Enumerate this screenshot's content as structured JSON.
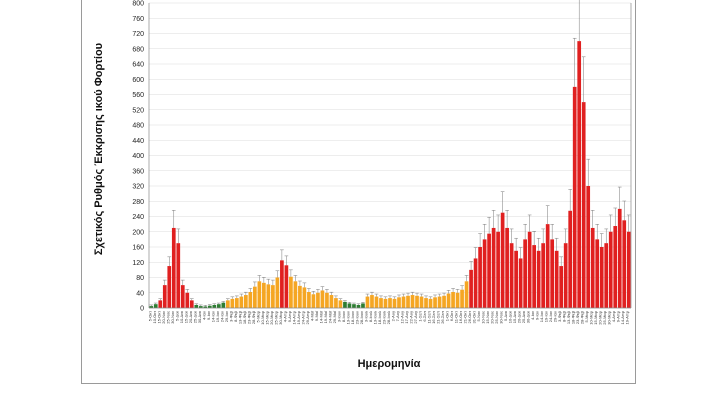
{
  "chart_data": {
    "type": "bar",
    "title": "",
    "xlabel": "Ημερομηνία",
    "ylabel": "Σχετικός Ρυθμός Έκκρισης ικού Φορτίου",
    "ylim": [
      0,
      800
    ],
    "yticks": [
      0,
      40,
      80,
      120,
      160,
      200,
      240,
      280,
      320,
      360,
      400,
      440,
      480,
      520,
      560,
      600,
      640,
      680,
      720,
      760,
      800
    ],
    "grid": true,
    "colors": {
      "low": "#2e7d32",
      "medium": "#f5a623",
      "high": "#e02020",
      "error_bar": "#7a7a7a",
      "error_fill": "#bdbdbd"
    },
    "x_tick_labels": [
      "5-Οκτ",
      "10-Οκτ",
      "15-Οκτ",
      "20-Νοε",
      "25-Νοε",
      "30-Νοε",
      "5-Δεκ",
      "10-Δεκ",
      "15-Δεκ",
      "20-Δεκ",
      "25-Δεκ",
      "30-Δεκ",
      "4-Ιαν",
      "9-Ιαν",
      "14-Ιαν",
      "19-Ιαν",
      "24-Ιαν",
      "29-Ιαν",
      "3-Φεβ",
      "8-Φεβ",
      "13-Φεβ",
      "18-Φεβ",
      "23-Φεβ",
      "28-Φεβ",
      "5-Μαρ",
      "10-Μαρ",
      "15-Μαρ",
      "20-Μαρ",
      "25-Μαρ",
      "30-Μαρ",
      "4-Απρ",
      "9-Απρ",
      "14-Απρ",
      "19-Απρ",
      "24-Απρ",
      "29-Απρ",
      "4-Μαϊ",
      "9-Μαϊ",
      "14-Μαϊ",
      "19-Μαϊ",
      "24-Μαϊ",
      "29-Μαϊ",
      "3-Ιουν",
      "8-Ιουν",
      "13-Ιουν",
      "18-Ιουν",
      "23-Ιουν",
      "28-Ιουν",
      "3-Ιουλ",
      "8-Ιουλ",
      "13-Ιουλ",
      "18-Ιουλ",
      "23-Ιουλ",
      "28-Ιουλ",
      "2-Αυγ",
      "7-Αυγ",
      "12-Αυγ",
      "17-Αυγ",
      "22-Αυγ",
      "27-Αυγ",
      "1-Σεπ",
      "6-Σεπ",
      "11-Σεπ",
      "16-Σεπ",
      "21-Σεπ",
      "26-Σεπ",
      "1-Οκτ",
      "6-Οκτ",
      "11-Οκτ",
      "16-Οκτ",
      "21-Οκτ",
      "26-Οκτ",
      "31-Οκτ",
      "5-Νοε",
      "10-Νοε",
      "15-Νοε",
      "20-Νοε",
      "25-Νοε",
      "30-Νοε",
      "5-Δεκ",
      "10-Δεκ",
      "15-Δεκ",
      "20-Δεκ",
      "25-Δεκ",
      "30-Δεκ",
      "4-Ιαν",
      "9-Ιαν",
      "14-Ιαν",
      "19-Ιαν",
      "24-Ιαν",
      "29-Ιαν",
      "3-Φεβ",
      "8-Φεβ",
      "13-Φεβ",
      "18-Φεβ",
      "23-Φεβ",
      "28-Φεβ",
      "5-Μαρ",
      "10-Μαρ",
      "15-Μαρ",
      "20-Μαρ",
      "25-Μαρ",
      "30-Μαρ",
      "4-Απρ",
      "9-Απρ",
      "14-Απρ",
      "19-Απρ"
    ],
    "series": [
      {
        "values": [
          5,
          10,
          20,
          60,
          110,
          210,
          170,
          60,
          40,
          20,
          8,
          5,
          4,
          6,
          8,
          10,
          14,
          20,
          24,
          26,
          30,
          34,
          42,
          56,
          70,
          66,
          62,
          60,
          80,
          125,
          112,
          82,
          70,
          58,
          54,
          42,
          36,
          40,
          46,
          40,
          34,
          26,
          20,
          16,
          12,
          10,
          8,
          12,
          30,
          34,
          30,
          26,
          24,
          26,
          24,
          28,
          30,
          32,
          34,
          32,
          30,
          26,
          24,
          28,
          30,
          32,
          38,
          42,
          40,
          48,
          70,
          100,
          130,
          160,
          180,
          195,
          210,
          200,
          250,
          210,
          170,
          150,
          130,
          180,
          200,
          165,
          150,
          170,
          220,
          180,
          150,
          110,
          170,
          255,
          580,
          700,
          540,
          320,
          210,
          180,
          160,
          170,
          200,
          215,
          260,
          230,
          200
        ]
      }
    ]
  }
}
